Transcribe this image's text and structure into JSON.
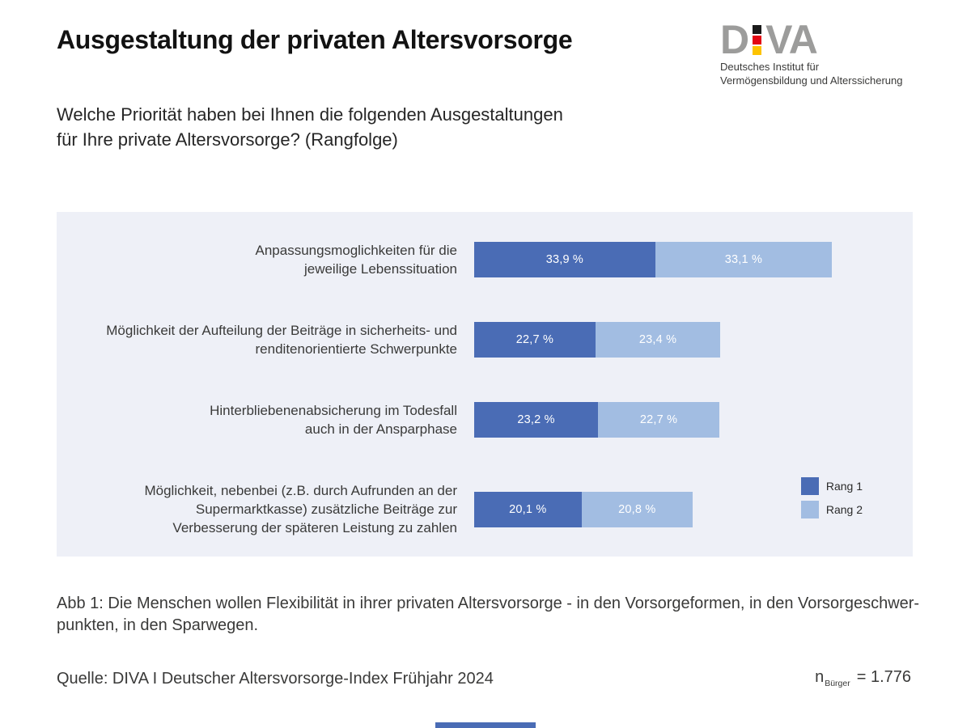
{
  "page": {
    "title": "Ausgestaltung der privaten Altersvorsorge",
    "question_line1": "Welche Priorität haben bei Ihnen die folgenden Ausgestaltungen",
    "question_line2": "für Ihre private Altersvorsorge? (Rangfolge)",
    "caption_line1": "Abb 1: Die Menschen wollen Flexibilität in ihrer privaten Altersvorsorge - in den Vorsorgeformen, in den Vorsorgeschwer-",
    "caption_line2": "punkten, in den Sparwegen.",
    "source_text": "Quelle: DIVA I Deutscher Altersvorsorge-Index Frühjahr 2024",
    "sample": {
      "symbol": "n",
      "subscript": "Bürger",
      "value": "= 1.776"
    }
  },
  "logo": {
    "letter_d": "D",
    "letters_va": "VA",
    "tagline_line1": "Deutsches Institut für",
    "tagline_line2": "Vermögensbildung und Alterssicherung",
    "colors": {
      "gray": "#9c9c9b",
      "black": "#1a1a1a",
      "red": "#e30613",
      "gold": "#fdc300"
    }
  },
  "chart_data": {
    "type": "bar",
    "orientation": "horizontal",
    "stacked": true,
    "unit": "%",
    "panel_background": "#eef0f7",
    "axis": "hidden",
    "legend_position": "bottom-right",
    "categories": [
      "Anpassungsmoglichkeiten für die\njeweilige Lebenssituation",
      "Möglichkeit der Aufteilung der Beiträge in sicherheits- und\nrenditenorientierte Schwerpunkte",
      "Hinterbliebenenabsicherung im Todesfall\nauch in der Ansparphase",
      "Möglichkeit, nebenbei (z.B. durch Aufrunden an der\nSupermarktkasse) zusätzliche Beiträge zur\nVerbesserung der späteren Leistung zu zahlen"
    ],
    "series": [
      {
        "name": "Rang 1",
        "color": "#4a6cb5",
        "values": [
          33.9,
          22.7,
          23.2,
          20.1
        ],
        "value_labels": [
          "33,9 %",
          "22,7 %",
          "23,2 %",
          "20,1 %"
        ]
      },
      {
        "name": "Rang 2",
        "color": "#a2bde2",
        "values": [
          33.1,
          23.4,
          22.7,
          20.8
        ],
        "value_labels": [
          "33,1 %",
          "23,4 %",
          "22,7 %",
          "20,8 %"
        ]
      }
    ]
  }
}
